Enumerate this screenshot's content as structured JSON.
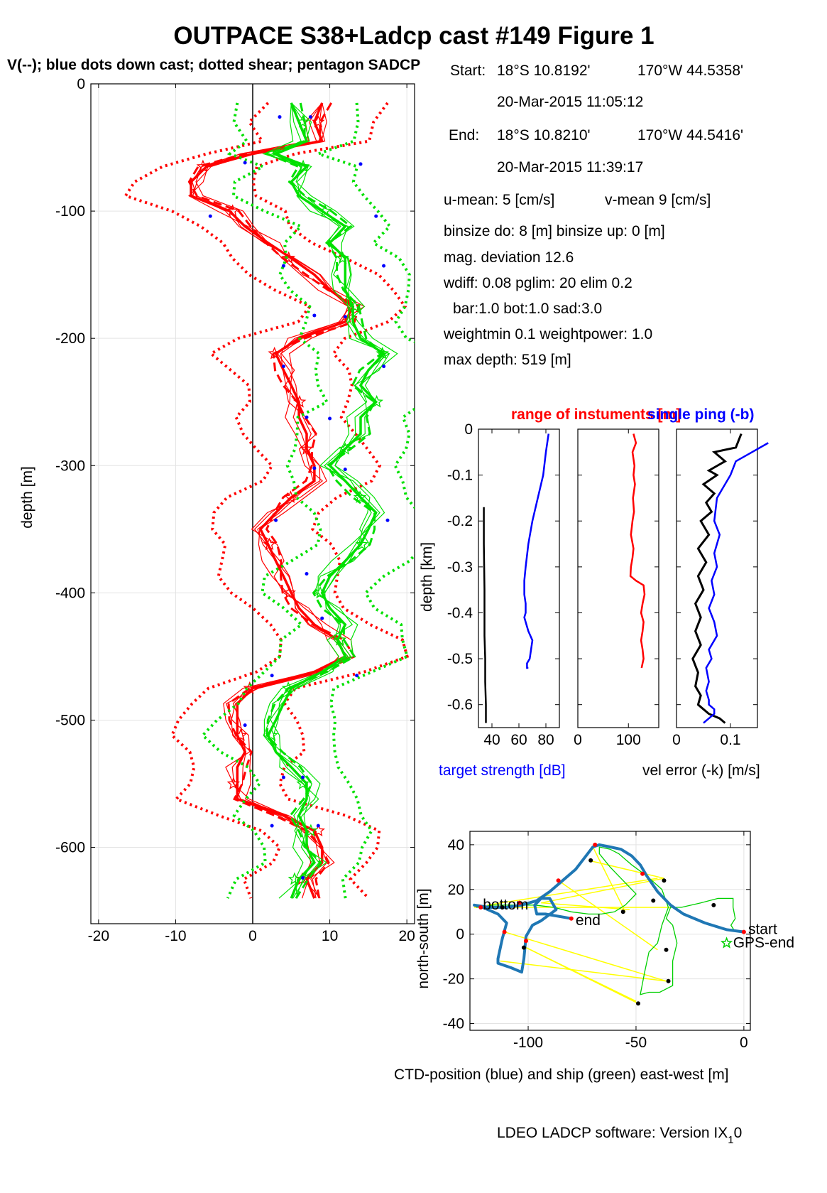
{
  "figure": {
    "title": "OUTPACE S38+Ladcp cast #149  Figure 1",
    "subtitle": "V(--); blue dots down cast; dotted shear; pentagon SADCP",
    "footer": "LDEO LADCP software: Version IX",
    "footer_sub": "1",
    "footer_tail": "0"
  },
  "info": {
    "start_label": "Start:",
    "start_lat": "18°S 10.8192'",
    "start_lon": "170°W 44.5358'",
    "start_time": "20-Mar-2015 11:05:12",
    "end_label": "End:",
    "end_lat": "18°S 10.8210'",
    "end_lon": "170°W 44.5416'",
    "end_time": "20-Mar-2015 11:39:17",
    "u_mean": "u-mean:   5 [cm/s]",
    "v_mean": "v-mean   9 [cm/s]",
    "binsize": "binsize do: 8 [m]  binsize up:  0 [m]",
    "mag_dev": "mag. deviation 12.6",
    "wdiff": "wdiff: 0.08  pglim: 20  elim 0.2",
    "bar": "bar:1.0 bot:1.0 sad:3.0",
    "weight": "weightmin 0.1  weightpower: 1.0",
    "max_depth": "max depth: 519 [m]"
  },
  "chart_data": [
    {
      "type": "line",
      "xlim": [
        -21,
        21
      ],
      "ylim": [
        -660,
        0
      ],
      "xticks": [
        -20,
        -10,
        0,
        10,
        20
      ],
      "yticks": [
        0,
        -100,
        -200,
        -300,
        -400,
        -500,
        -600
      ],
      "xtick_labels": [
        "-20",
        "-10",
        "0",
        "10",
        "20"
      ],
      "ytick_labels": [
        "0",
        "-100",
        "-200",
        "-300",
        "-400",
        "-500",
        "-600"
      ],
      "ylabel": "depth [m]",
      "grid": true,
      "depth": [
        -15,
        -30,
        -45,
        -55,
        -65,
        -77,
        -88,
        -100,
        -112,
        -125,
        -137,
        -150,
        -162,
        -175,
        -187,
        -200,
        -212,
        -225,
        -237,
        -250,
        -262,
        -275,
        -287,
        -300,
        -312,
        -325,
        -337,
        -350,
        -362,
        -375,
        -387,
        -400,
        -412,
        -425,
        -437,
        -450,
        -462,
        -475,
        -487,
        -500,
        -512,
        -525,
        -537,
        -550,
        -562,
        -575,
        -587,
        -600,
        -612,
        -625,
        -640
      ],
      "u_mean": [
        9,
        8,
        9,
        0,
        -6,
        -8,
        -8,
        -3,
        -1,
        2,
        5,
        8,
        10,
        13,
        12,
        6,
        3,
        4,
        5,
        6,
        6,
        7,
        7,
        8,
        8,
        5,
        3,
        1,
        2,
        3,
        4,
        5,
        6,
        8,
        11,
        12,
        8,
        0,
        -2,
        -2,
        -2,
        -1,
        -2,
        -2,
        -2,
        4,
        8,
        9,
        9,
        7,
        8
      ],
      "v_mean": [
        5,
        6,
        7,
        3,
        7,
        5,
        6,
        9,
        12,
        10,
        12,
        12,
        12,
        13,
        13,
        14,
        17,
        15,
        14,
        16,
        14,
        14,
        12,
        10,
        12,
        14,
        16,
        15,
        14,
        12,
        10,
        9,
        10,
        12,
        11,
        12,
        9,
        5,
        4,
        3,
        2,
        3,
        5,
        7,
        7,
        6,
        7,
        7,
        8,
        6,
        5
      ],
      "u_series_name": "u",
      "v_series_name": "v",
      "u_color": "#ff0000",
      "v_color": "#00e000",
      "downcast_dots": [
        [
          -26,
          3.5
        ],
        [
          -26,
          7.5
        ],
        [
          -62,
          -1
        ],
        [
          -63,
          14
        ],
        [
          -104,
          -5.5
        ],
        [
          -104,
          16
        ],
        [
          -143,
          4
        ],
        [
          -143,
          17
        ],
        [
          -182,
          8
        ],
        [
          -183,
          12
        ],
        [
          -222,
          4
        ],
        [
          -222,
          17
        ],
        [
          -262,
          7
        ],
        [
          -263,
          10
        ],
        [
          -302,
          8
        ],
        [
          -303,
          12
        ],
        [
          -343,
          3
        ],
        [
          -343,
          17.5
        ],
        [
          -385,
          7
        ],
        [
          -420,
          9
        ],
        [
          -465,
          2.5
        ],
        [
          -465,
          13.5
        ],
        [
          -504,
          -1
        ],
        [
          -545,
          4
        ],
        [
          -545,
          6.5
        ],
        [
          -583,
          2.5
        ],
        [
          -583,
          8.5
        ],
        [
          -624,
          6.5
        ]
      ]
    },
    {
      "type": "line",
      "title": "range of instuments [m]",
      "xlabel": "target strength [dB]",
      "ylabel": "depth [km]",
      "xticks": [
        40,
        60,
        80
      ],
      "xtick_labels": [
        "40",
        "60",
        "80"
      ],
      "xlim": [
        30,
        90
      ],
      "ylim": [
        -0.65,
        0
      ],
      "yticks": [
        0,
        -0.1,
        -0.2,
        -0.3,
        -0.4,
        -0.5,
        -0.6
      ],
      "ytick_labels": [
        "0",
        "-0.1",
        "-0.2",
        "-0.3",
        "-0.4",
        "-0.5",
        "-0.6"
      ],
      "series": [
        {
          "color": "#0000ff",
          "x": [
            82,
            80,
            78,
            74,
            70,
            67,
            65,
            64,
            64,
            65,
            65,
            64,
            65,
            67,
            70,
            69,
            68,
            66,
            66,
            67
          ],
          "y": [
            -0.01,
            -0.05,
            -0.1,
            -0.15,
            -0.2,
            -0.25,
            -0.3,
            -0.33,
            -0.36,
            -0.38,
            -0.4,
            -0.41,
            -0.42,
            -0.44,
            -0.46,
            -0.48,
            -0.5,
            -0.51,
            -0.52,
            -0.52
          ]
        },
        {
          "color": "#000000",
          "x": [
            34,
            34,
            34.5,
            34.5,
            35,
            35,
            35.5,
            35.5
          ],
          "y": [
            -0.17,
            -0.25,
            -0.35,
            -0.45,
            -0.5,
            -0.55,
            -0.6,
            -0.64
          ]
        }
      ]
    },
    {
      "type": "line",
      "xticks": [
        0,
        100
      ],
      "xtick_labels": [
        "0",
        "100"
      ],
      "xlim": [
        0,
        160
      ],
      "ylim": [
        -0.65,
        0
      ],
      "series": [
        {
          "color": "#ff0000",
          "x": [
            110,
            115,
            108,
            112,
            110,
            113,
            109,
            111,
            108,
            105,
            110,
            108,
            105,
            104,
            115,
            130,
            132,
            128,
            125,
            130,
            128,
            125,
            128,
            130,
            128,
            126,
            126
          ],
          "y": [
            -0.01,
            -0.03,
            -0.05,
            -0.08,
            -0.1,
            -0.12,
            -0.15,
            -0.18,
            -0.2,
            -0.23,
            -0.26,
            -0.28,
            -0.3,
            -0.32,
            -0.33,
            -0.34,
            -0.36,
            -0.38,
            -0.4,
            -0.42,
            -0.44,
            -0.46,
            -0.48,
            -0.5,
            -0.51,
            -0.52,
            -0.52
          ]
        }
      ]
    },
    {
      "type": "line",
      "title": "single ping (-b)",
      "xlabel": "vel error (-k) [m/s]",
      "xticks": [
        0,
        0.1
      ],
      "xtick_labels": [
        "0",
        "0.1"
      ],
      "xlim": [
        0,
        0.15
      ],
      "ylim": [
        -0.65,
        0
      ],
      "series": [
        {
          "color": "#000000",
          "x": [
            0.12,
            0.11,
            0.07,
            0.09,
            0.06,
            0.075,
            0.05,
            0.07,
            0.055,
            0.065,
            0.045,
            0.06,
            0.04,
            0.055,
            0.04,
            0.05,
            0.035,
            0.045,
            0.035,
            0.045,
            0.03,
            0.04,
            0.035,
            0.045,
            0.04,
            0.05,
            0.06,
            0.08,
            0.09
          ],
          "y": [
            -0.01,
            -0.04,
            -0.05,
            -0.07,
            -0.09,
            -0.1,
            -0.12,
            -0.14,
            -0.16,
            -0.18,
            -0.2,
            -0.23,
            -0.26,
            -0.29,
            -0.32,
            -0.35,
            -0.38,
            -0.41,
            -0.44,
            -0.47,
            -0.5,
            -0.53,
            -0.56,
            -0.58,
            -0.6,
            -0.61,
            -0.62,
            -0.63,
            -0.64
          ]
        },
        {
          "color": "#0000ff",
          "x": [
            0.17,
            0.14,
            0.11,
            0.1,
            0.075,
            0.07,
            0.08,
            0.07,
            0.075,
            0.065,
            0.07,
            0.06,
            0.07,
            0.075,
            0.06,
            0.065,
            0.055,
            0.06,
            0.055,
            0.06,
            0.06,
            0.07,
            0.07,
            0.06,
            0.05
          ],
          "y": [
            -0.03,
            -0.05,
            -0.07,
            -0.1,
            -0.15,
            -0.2,
            -0.23,
            -0.27,
            -0.3,
            -0.33,
            -0.36,
            -0.39,
            -0.42,
            -0.45,
            -0.48,
            -0.5,
            -0.52,
            -0.55,
            -0.57,
            -0.59,
            -0.6,
            -0.61,
            -0.62,
            -0.63,
            -0.64
          ]
        }
      ]
    },
    {
      "type": "line",
      "xlabel": "CTD-position (blue) and ship (green) east-west [m]",
      "ylabel": "north-south [m]",
      "xlim": [
        -127,
        3
      ],
      "ylim": [
        -43,
        46
      ],
      "xticks": [
        -100,
        -50,
        0
      ],
      "yticks": [
        40,
        20,
        0,
        -20,
        -40
      ],
      "xtick_labels": [
        "-100",
        "-50",
        "0"
      ],
      "ytick_labels": [
        "40",
        "20",
        "0",
        "-20",
        "-40"
      ],
      "labels": {
        "bottom": "bottom",
        "end": "end",
        "start": "start",
        "gps_end": "GPS-end"
      },
      "ctd": [
        [
          0,
          1
        ],
        [
          -8,
          2
        ],
        [
          -18,
          5
        ],
        [
          -28,
          9
        ],
        [
          -34,
          13
        ],
        [
          -40,
          19
        ],
        [
          -45,
          26
        ],
        [
          -48,
          31
        ],
        [
          -52,
          35
        ],
        [
          -57,
          38
        ],
        [
          -62,
          39
        ],
        [
          -67,
          40
        ],
        [
          -70,
          39
        ],
        [
          -74,
          34
        ],
        [
          -78,
          29
        ],
        [
          -84,
          24
        ],
        [
          -90,
          19
        ],
        [
          -96,
          15
        ],
        [
          -103,
          13
        ],
        [
          -110,
          12
        ],
        [
          -118,
          12
        ],
        [
          -125,
          13
        ],
        [
          -121,
          12
        ],
        [
          -114,
          9
        ],
        [
          -110,
          5
        ],
        [
          -112,
          -2
        ],
        [
          -114,
          -11
        ],
        [
          -114,
          -13
        ],
        [
          -108,
          -15
        ],
        [
          -103,
          -17
        ],
        [
          -102,
          -11
        ],
        [
          -101,
          -1
        ],
        [
          -98,
          4
        ],
        [
          -94,
          6
        ],
        [
          -87,
          11
        ],
        [
          -90,
          16
        ],
        [
          -94,
          16
        ],
        [
          -97,
          13
        ],
        [
          -96,
          9
        ],
        [
          -92,
          9
        ],
        [
          -80,
          7
        ]
      ],
      "ship": [
        [
          -4,
          1
        ],
        [
          -6,
          4
        ],
        [
          -4,
          7
        ],
        [
          -5,
          12
        ],
        [
          -5,
          16
        ],
        [
          -12,
          16
        ],
        [
          -20,
          14
        ],
        [
          -29,
          12
        ],
        [
          -34,
          12
        ],
        [
          -36,
          7
        ],
        [
          -33,
          4
        ],
        [
          -31,
          -4
        ],
        [
          -33,
          -12
        ],
        [
          -33,
          -23
        ],
        [
          -39,
          -26
        ],
        [
          -44,
          -26
        ],
        [
          -48,
          -27
        ],
        [
          -46,
          -17
        ],
        [
          -44,
          -8
        ],
        [
          -40,
          -4
        ],
        [
          -38,
          4
        ],
        [
          -35,
          12
        ],
        [
          -38,
          20
        ],
        [
          -45,
          26
        ],
        [
          -52,
          31
        ],
        [
          -58,
          36
        ],
        [
          -62,
          38
        ],
        [
          -67,
          39
        ],
        [
          -67,
          36
        ],
        [
          -62,
          30
        ],
        [
          -56,
          24
        ],
        [
          -50,
          18
        ],
        [
          -55,
          13
        ],
        [
          -60,
          10
        ],
        [
          -66,
          9
        ],
        [
          -72,
          9
        ],
        [
          -80,
          10
        ],
        [
          -88,
          12
        ],
        [
          -97,
          13
        ],
        [
          -107,
          13
        ],
        [
          -116,
          13
        ],
        [
          -124,
          12
        ]
      ],
      "yellow_segments": [
        [
          [
            -125,
            12
          ],
          [
            -34,
            12
          ]
        ],
        [
          [
            -119,
            13
          ],
          [
            -40,
            25
          ]
        ],
        [
          [
            -94,
            14
          ],
          [
            -37,
            25
          ]
        ],
        [
          [
            -72,
            33
          ],
          [
            -37,
            25
          ]
        ],
        [
          [
            -70,
            39
          ],
          [
            -55,
            10
          ]
        ],
        [
          [
            -86,
            24
          ],
          [
            -40,
            -7
          ]
        ],
        [
          [
            -111,
            1
          ],
          [
            -36,
            -21
          ]
        ],
        [
          [
            -113,
            -12
          ],
          [
            -36,
            -21
          ]
        ],
        [
          [
            -101,
            -6
          ],
          [
            -50,
            -30
          ]
        ],
        [
          [
            -101,
            -6
          ],
          [
            -49,
            -31
          ]
        ],
        [
          [
            -94,
            14
          ],
          [
            -53,
            11
          ]
        ]
      ],
      "black_dots": [
        [
          -14,
          13
        ],
        [
          -37,
          24
        ],
        [
          -42,
          15
        ],
        [
          -36,
          -7
        ],
        [
          -35,
          -21
        ],
        [
          -49,
          -31
        ],
        [
          -56,
          10
        ],
        [
          -71,
          33
        ],
        [
          -102,
          -6
        ],
        [
          -112,
          12
        ]
      ],
      "red_dots": [
        [
          0,
          1
        ],
        [
          -80,
          7
        ],
        [
          -69,
          40
        ],
        [
          -47,
          27
        ],
        [
          -86,
          24
        ],
        [
          -104,
          14
        ],
        [
          -111,
          1
        ],
        [
          -101,
          -3
        ],
        [
          -122,
          12
        ]
      ]
    }
  ]
}
